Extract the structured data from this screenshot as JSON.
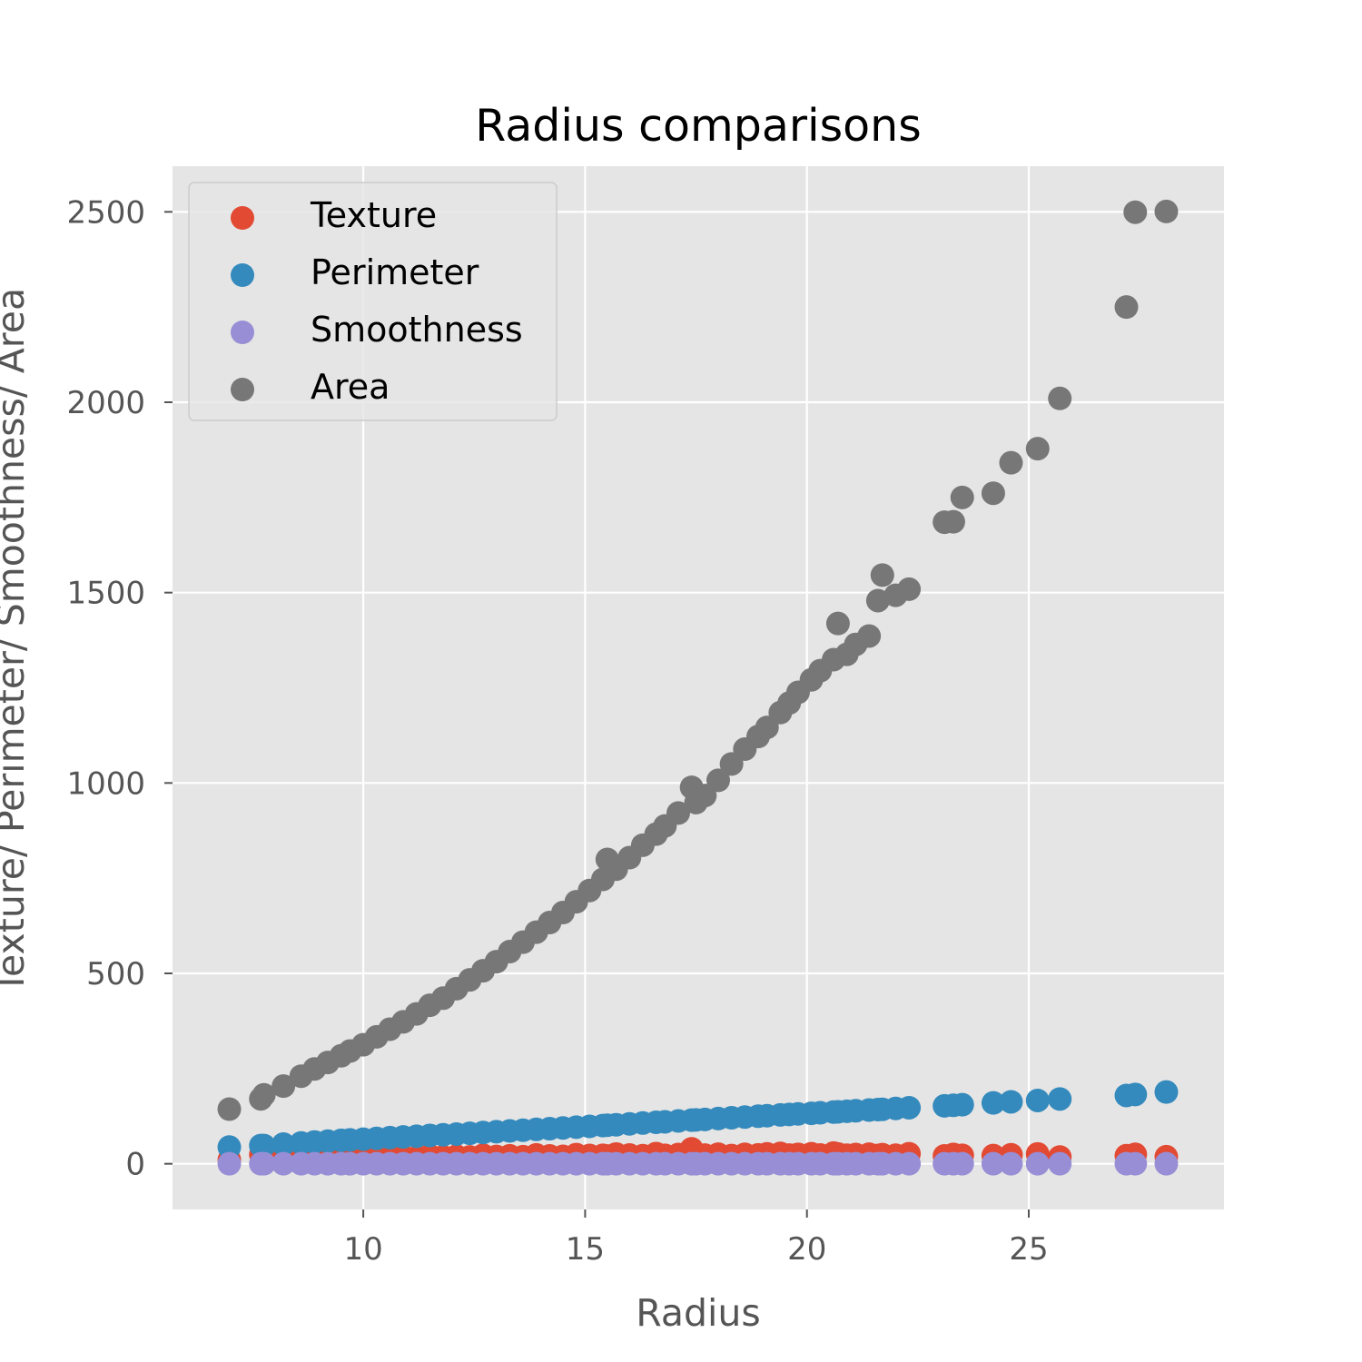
{
  "chart_data": {
    "type": "scatter",
    "title": "Radius comparisons",
    "xlabel": "Radius",
    "ylabel": "Texture/ Perimeter/ Smoothness/ Area",
    "xlim": [
      5.7,
      29.4
    ],
    "ylim": [
      -120,
      2620
    ],
    "xticks": [
      10,
      15,
      20,
      25
    ],
    "yticks": [
      0,
      500,
      1000,
      1500,
      2000,
      2500
    ],
    "grid": true,
    "legend": "upper left",
    "colors": {
      "Texture": "#E24A33",
      "Perimeter": "#348ABD",
      "Smoothness": "#988ED5",
      "Area": "#777777"
    },
    "x": [
      6.98,
      7.69,
      7.76,
      8.2,
      8.6,
      8.9,
      9.2,
      9.5,
      9.7,
      10.0,
      10.3,
      10.6,
      10.9,
      11.2,
      11.5,
      11.8,
      12.1,
      12.4,
      12.7,
      13.0,
      13.3,
      13.6,
      13.9,
      14.2,
      14.5,
      14.8,
      15.1,
      15.4,
      15.5,
      15.7,
      16.0,
      16.3,
      16.6,
      16.8,
      17.1,
      17.4,
      17.5,
      17.7,
      18.0,
      18.3,
      18.6,
      18.9,
      19.1,
      19.4,
      19.6,
      19.8,
      20.1,
      20.3,
      20.6,
      20.7,
      20.9,
      21.1,
      21.4,
      21.6,
      21.7,
      22.0,
      22.3,
      23.1,
      23.3,
      23.5,
      24.2,
      24.6,
      25.2,
      25.7,
      27.2,
      27.4,
      28.1
    ],
    "series": [
      {
        "name": "Texture",
        "values": [
          10.4,
          24.5,
          25.5,
          14.9,
          17.2,
          15.0,
          18.3,
          16.9,
          19.5,
          17.7,
          18.1,
          20.2,
          19.0,
          16.8,
          21.3,
          18.4,
          20.0,
          17.9,
          22.6,
          19.3,
          21.1,
          18.7,
          23.4,
          20.8,
          19.6,
          24.1,
          21.9,
          22.3,
          20.5,
          25.6,
          23.0,
          21.4,
          26.8,
          22.1,
          24.3,
          39.3,
          23.8,
          22.7,
          25.2,
          21.6,
          24.9,
          23.3,
          26.0,
          27.2,
          22.9,
          24.7,
          26.3,
          23.1,
          28.1,
          25.8,
          22.4,
          24.2,
          25.1,
          21.8,
          23.9,
          22.5,
          26.4,
          20.7,
          24.6,
          22.3,
          21.5,
          23.7,
          25.9,
          17.8,
          21.2,
          24.8,
          18.5
        ]
      },
      {
        "name": "Perimeter",
        "values": [
          43.8,
          47.9,
          47.9,
          51.7,
          54.8,
          57.2,
          59.3,
          61.5,
          62.8,
          64.5,
          66.6,
          68.6,
          70.4,
          72.3,
          74.5,
          76.1,
          78.0,
          80.1,
          82.0,
          84.3,
          86.2,
          88.0,
          90.3,
          92.1,
          94.1,
          96.0,
          98.2,
          100.4,
          101.3,
          102.5,
          104.8,
          107.0,
          108.9,
          110.2,
          112.4,
          114.6,
          115.2,
          116.5,
          118.7,
          120.8,
          122.7,
          124.9,
          126.3,
          128.2,
          129.5,
          131.0,
          132.6,
          134.0,
          135.8,
          136.5,
          137.8,
          139.2,
          141.0,
          142.4,
          143.0,
          145.3,
          147.2,
          152.1,
          153.5,
          155.1,
          159.8,
          162.6,
          166.2,
          170.1,
          179.4,
          182.1,
          188.5
        ]
      },
      {
        "name": "Smoothness",
        "values": [
          0.11,
          0.1,
          0.09,
          0.1,
          0.1,
          0.1,
          0.1,
          0.09,
          0.1,
          0.1,
          0.1,
          0.09,
          0.1,
          0.1,
          0.1,
          0.09,
          0.1,
          0.1,
          0.1,
          0.1,
          0.09,
          0.1,
          0.1,
          0.1,
          0.1,
          0.1,
          0.1,
          0.1,
          0.09,
          0.1,
          0.1,
          0.1,
          0.1,
          0.1,
          0.1,
          0.1,
          0.1,
          0.1,
          0.1,
          0.1,
          0.1,
          0.1,
          0.1,
          0.1,
          0.1,
          0.1,
          0.1,
          0.1,
          0.1,
          0.1,
          0.1,
          0.1,
          0.1,
          0.1,
          0.1,
          0.1,
          0.1,
          0.1,
          0.1,
          0.1,
          0.1,
          0.1,
          0.1,
          0.1,
          0.1,
          0.1,
          0.1
        ]
      },
      {
        "name": "Area",
        "values": [
          143.5,
          170.4,
          181.0,
          203.9,
          230.0,
          249.1,
          266.0,
          283.5,
          296.1,
          312.6,
          333.3,
          353.5,
          372.7,
          393.6,
          416.2,
          434.9,
          459.8,
          482.9,
          506.9,
          530.7,
          557.2,
          582.0,
          608.3,
          633.5,
          659.7,
          688.0,
          717.7,
          746.9,
          799.4,
          773.6,
          804.0,
          836.6,
          865.7,
          887.3,
          921.1,
          988.6,
          948.6,
          967.0,
          1007.0,
          1050.0,
          1089.0,
          1122.0,
          1146.0,
          1185.0,
          1210.0,
          1238.0,
          1271.0,
          1295.0,
          1324.0,
          1419.0,
          1338.0,
          1364.0,
          1386.0,
          1479.0,
          1546.0,
          1493.0,
          1509.0,
          1685.0,
          1686.0,
          1750.0,
          1761.0,
          1841.0,
          1878.0,
          2010.0,
          2250.0,
          2499.0,
          2501.0
        ]
      }
    ]
  }
}
